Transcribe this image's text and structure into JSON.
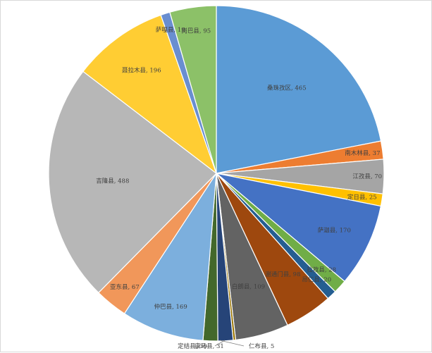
{
  "chart_data": {
    "type": "pie",
    "title": "",
    "start_angle_deg": 0,
    "direction": "clockwise",
    "legend": "none",
    "slices": [
      {
        "label": "桑珠孜区",
        "value": 465,
        "color": "#5b9bd5"
      },
      {
        "label": "南木林县",
        "value": 37,
        "color": "#ed7d31"
      },
      {
        "label": "江孜县",
        "value": 70,
        "color": "#a5a5a5"
      },
      {
        "label": "定日县",
        "value": 25,
        "color": "#ffc000"
      },
      {
        "label": "萨迦县",
        "value": 170,
        "color": "#4472c4"
      },
      {
        "label": "拉孜县",
        "value": 28,
        "color": "#70ad47"
      },
      {
        "label": "昂仁县",
        "value": 20,
        "color": "#255e91"
      },
      {
        "label": "谢通门县",
        "value": 98,
        "color": "#9e480e"
      },
      {
        "label": "白朗县",
        "value": 109,
        "color": "#636363"
      },
      {
        "label": "仁布县",
        "value": 5,
        "color": "#997300"
      },
      {
        "label": "康马县",
        "value": 31,
        "color": "#264478"
      },
      {
        "label": "定结县",
        "value": 30,
        "color": "#43682b"
      },
      {
        "label": "仲巴县",
        "value": 169,
        "color": "#7cafdd"
      },
      {
        "label": "亚东县",
        "value": 67,
        "color": "#f1975a"
      },
      {
        "label": "吉隆县",
        "value": 488,
        "color": "#b7b7b7"
      },
      {
        "label": "聂拉木县",
        "value": 196,
        "color": "#ffcd33"
      },
      {
        "label": "萨嘎县",
        "value": 19,
        "color": "#698ed0"
      },
      {
        "label": "岗巴县",
        "value": 95,
        "color": "#8cc168"
      }
    ]
  }
}
